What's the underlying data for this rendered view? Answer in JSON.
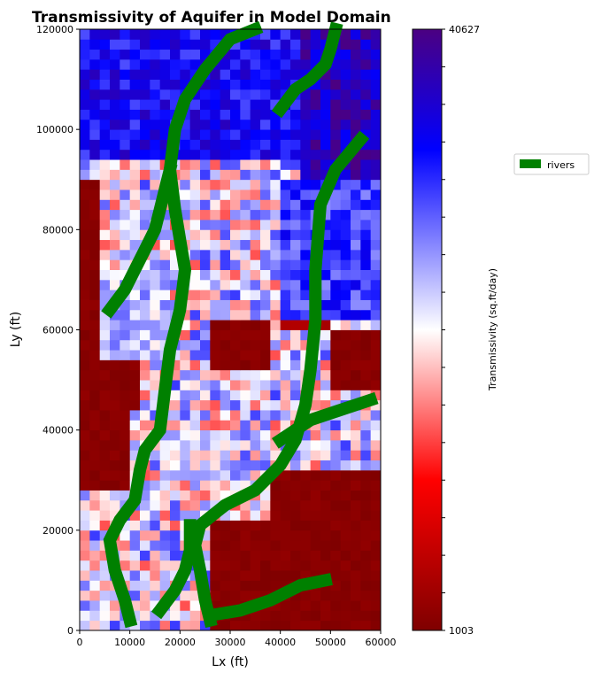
{
  "chart_data": {
    "type": "heatmap",
    "title": "Transmissivity of Aquifer in Model Domain",
    "xlabel": "Lx (ft)",
    "ylabel": "Ly (ft)",
    "xlim": [
      0,
      60000
    ],
    "ylim": [
      0,
      120000
    ],
    "xticks": [
      "0",
      "10000",
      "20000",
      "30000",
      "40000",
      "50000",
      "60000"
    ],
    "yticks": [
      "0",
      "20000",
      "40000",
      "60000",
      "80000",
      "100000",
      "120000"
    ],
    "grid": false,
    "colorbar": {
      "label": "Transmissivity (sq.ft/day)",
      "min": 1003,
      "max": 40627,
      "min_label": "1003",
      "max_label": "40627",
      "colormap": [
        "#7f0000",
        "#ff0000",
        "#ffffff",
        "#0000ff",
        "#4b0082"
      ]
    },
    "legend": {
      "label": "rivers",
      "color": "#008000",
      "placement": "right of colorbar"
    },
    "grid_cols": 30,
    "grid_rows": 60,
    "zones_note_values_in_sq_ft_per_day": true,
    "zones": [
      {
        "x": [
          0,
          60000
        ],
        "y": [
          95000,
          120000
        ],
        "value": 33000
      },
      {
        "x": [
          45000,
          60000
        ],
        "y": [
          85000,
          120000
        ],
        "value": 37000
      },
      {
        "x": [
          0,
          4000
        ],
        "y": [
          28000,
          90000
        ],
        "value": 1003
      },
      {
        "x": [
          4000,
          13000
        ],
        "y": [
          44000,
          54000
        ],
        "value": 1003
      },
      {
        "x": [
          0,
          10000
        ],
        "y": [
          28000,
          48000
        ],
        "value": 1003
      },
      {
        "x": [
          26000,
          38000
        ],
        "y": [
          52000,
          62000
        ],
        "value": 1003
      },
      {
        "x": [
          27000,
          60000
        ],
        "y": [
          0,
          22000
        ],
        "value": 1003
      },
      {
        "x": [
          38000,
          60000
        ],
        "y": [
          22000,
          32000
        ],
        "value": 1003
      },
      {
        "x": [
          50000,
          60000
        ],
        "y": [
          48000,
          60000
        ],
        "value": 1003
      },
      {
        "x": [
          40000,
          50000
        ],
        "y": [
          60000,
          68000
        ],
        "value": 4000
      },
      {
        "x": [
          40000,
          60000
        ],
        "y": [
          62000,
          90000
        ],
        "value": 30000
      },
      {
        "x": [
          5000,
          18000
        ],
        "y": [
          55000,
          72000
        ],
        "value": 24000
      },
      {
        "x": [
          16000,
          30000
        ],
        "y": [
          30000,
          40000
        ],
        "value": 22000
      }
    ],
    "rivers": [
      {
        "name": "rivers",
        "points": [
          [
            26000,
            2000
          ],
          [
            25000,
            6000
          ],
          [
            24000,
            12000
          ],
          [
            23000,
            17000
          ],
          [
            24000,
            21000
          ],
          [
            29000,
            25000
          ],
          [
            35000,
            28000
          ],
          [
            40000,
            33000
          ],
          [
            43000,
            38000
          ],
          [
            45000,
            45000
          ],
          [
            46000,
            52000
          ],
          [
            47000,
            62000
          ],
          [
            47000,
            72000
          ],
          [
            48000,
            85000
          ],
          [
            51000,
            92000
          ],
          [
            56000,
            98000
          ]
        ]
      },
      {
        "name": "rivers",
        "points": [
          [
            10000,
            2000
          ],
          [
            9000,
            6000
          ],
          [
            7000,
            12000
          ],
          [
            6000,
            18000
          ],
          [
            8000,
            22000
          ],
          [
            11000,
            26000
          ],
          [
            12000,
            32000
          ],
          [
            13000,
            36000
          ],
          [
            16000,
            40000
          ],
          [
            17000,
            48000
          ],
          [
            18000,
            56000
          ],
          [
            19000,
            60000
          ],
          [
            20000,
            64000
          ],
          [
            21000,
            72000
          ],
          [
            20000,
            78000
          ],
          [
            19000,
            84000
          ],
          [
            18000,
            92000
          ],
          [
            19000,
            100000
          ],
          [
            21000,
            106000
          ],
          [
            25000,
            112000
          ],
          [
            30000,
            118000
          ],
          [
            35000,
            120000
          ]
        ]
      },
      {
        "name": "rivers",
        "points": [
          [
            16000,
            4000
          ],
          [
            19000,
            8000
          ],
          [
            21000,
            12000
          ],
          [
            22000,
            16000
          ],
          [
            22000,
            21000
          ]
        ]
      },
      {
        "name": "rivers",
        "points": [
          [
            26000,
            3000
          ],
          [
            32000,
            4000
          ],
          [
            38000,
            6000
          ],
          [
            44000,
            9000
          ],
          [
            49000,
            10000
          ]
        ]
      },
      {
        "name": "rivers",
        "points": [
          [
            6000,
            64000
          ],
          [
            9000,
            68000
          ],
          [
            11000,
            72000
          ],
          [
            13000,
            76000
          ],
          [
            15000,
            80000
          ],
          [
            16000,
            84000
          ],
          [
            17000,
            88000
          ],
          [
            18000,
            92000
          ]
        ]
      },
      {
        "name": "rivers",
        "points": [
          [
            40000,
            104000
          ],
          [
            43000,
            108000
          ],
          [
            46000,
            110000
          ],
          [
            49000,
            113000
          ],
          [
            50000,
            116000
          ],
          [
            51000,
            120000
          ]
        ]
      },
      {
        "name": "rivers",
        "points": [
          [
            40000,
            38000
          ],
          [
            46000,
            42000
          ],
          [
            52000,
            44000
          ],
          [
            58000,
            46000
          ]
        ]
      }
    ]
  }
}
